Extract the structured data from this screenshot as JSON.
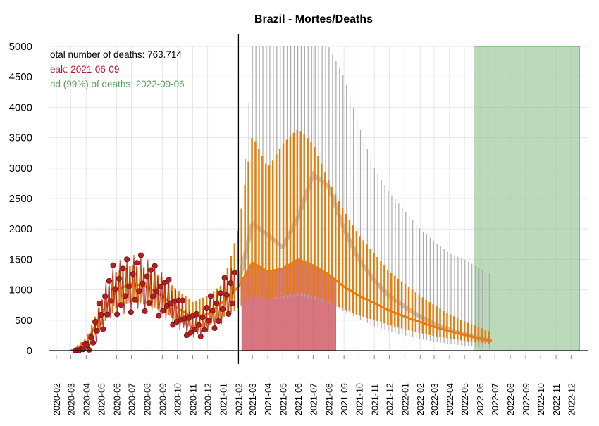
{
  "chart_data": {
    "type": "line",
    "title": "Brazil - Mortes/Deaths",
    "xlabel": "",
    "ylabel": "",
    "ylim": [
      0,
      5000
    ],
    "y_ticks": [
      0,
      500,
      1000,
      1500,
      2000,
      2500,
      3000,
      3500,
      4000,
      4500,
      5000
    ],
    "x_ticks": [
      "2020-02",
      "2020-03",
      "2020-04",
      "2020-05",
      "2020-06",
      "2020-07",
      "2020-08",
      "2020-09",
      "2020-10",
      "2020-11",
      "2020-12",
      "2021-01",
      "2021-02",
      "2021-03",
      "2021-04",
      "2021-05",
      "2021-06",
      "2021-07",
      "2021-08",
      "2021-09",
      "2021-10",
      "2021-11",
      "2021-12",
      "2022-01",
      "2022-02",
      "2022-03",
      "2022-04",
      "2022-05",
      "2022-06",
      "2022-07",
      "2022-08",
      "2022-09",
      "2022-10",
      "2022-11",
      "2022-12"
    ],
    "grid": true,
    "annotations": [
      {
        "text": "otal number of deaths: 763.714",
        "color": "#000000"
      },
      {
        "text": "eak: 2021-06-09",
        "color": "#b2182b"
      },
      {
        "text": "nd (99%) of deaths: 2022-09-06",
        "color": "#5a9e5a"
      }
    ],
    "forecast_start": "2021-02-01",
    "peak_region": {
      "start": "2021-02-08",
      "end": "2021-08-15",
      "color": "#c83c48"
    },
    "end_region": {
      "start": "2022-05-20",
      "end": "2022-12-18",
      "color": "#8fbf8f"
    },
    "colors": {
      "observed": "#a01010",
      "fit": "#e87c0a",
      "uncertainty": "#aaaaaa"
    },
    "series": [
      {
        "role": "observed",
        "x": [
          "2020-03-10",
          "2020-03-25",
          "2020-04-10",
          "2020-04-25",
          "2020-05-10",
          "2020-05-25",
          "2020-06-10",
          "2020-06-25",
          "2020-07-10",
          "2020-07-25",
          "2020-08-10",
          "2020-08-25",
          "2020-09-10",
          "2020-09-25",
          "2020-10-10",
          "2020-10-25",
          "2020-11-10",
          "2020-11-25",
          "2020-12-10",
          "2020-12-25",
          "2021-01-10",
          "2021-01-25"
        ],
        "y": [
          0,
          20,
          150,
          450,
          800,
          1000,
          1050,
          1050,
          1150,
          1100,
          1050,
          950,
          850,
          720,
          580,
          450,
          400,
          500,
          650,
          700,
          950,
          1050
        ],
        "band": [
          0,
          20,
          150,
          300,
          400,
          450,
          500,
          500,
          500,
          500,
          450,
          420,
          400,
          350,
          300,
          250,
          220,
          260,
          320,
          350,
          400,
          400
        ]
      },
      {
        "role": "fit",
        "x": [
          "2020-03-01",
          "2020-04-01",
          "2020-05-01",
          "2020-06-01",
          "2020-07-01",
          "2020-08-01",
          "2020-09-01",
          "2020-10-01",
          "2020-11-01",
          "2020-12-01",
          "2021-01-01",
          "2021-02-01",
          "2021-03-01",
          "2021-04-01",
          "2021-05-01",
          "2021-06-01",
          "2021-07-01",
          "2021-08-01",
          "2021-09-01",
          "2021-10-01",
          "2021-11-01",
          "2021-12-01",
          "2022-01-01",
          "2022-02-01",
          "2022-03-01",
          "2022-04-01",
          "2022-05-01",
          "2022-06-01",
          "2022-06-25"
        ],
        "y": [
          0,
          120,
          600,
          1000,
          1100,
          1050,
          900,
          700,
          550,
          600,
          800,
          1050,
          1450,
          1300,
          1350,
          1500,
          1400,
          1250,
          1050,
          900,
          780,
          660,
          560,
          470,
          390,
          320,
          260,
          200,
          160
        ],
        "high": [
          0,
          200,
          800,
          1300,
          1400,
          1350,
          1200,
          1000,
          800,
          900,
          1100,
          2000,
          3550,
          3000,
          3400,
          3650,
          3400,
          2800,
          2300,
          1900,
          1600,
          1300,
          1100,
          900,
          750,
          600,
          480,
          380,
          300
        ],
        "low": [
          0,
          50,
          400,
          700,
          800,
          750,
          650,
          480,
          380,
          400,
          550,
          700,
          900,
          850,
          900,
          950,
          900,
          800,
          680,
          580,
          500,
          420,
          350,
          290,
          240,
          200,
          160,
          130,
          110
        ]
      },
      {
        "role": "uncertainty",
        "x": [
          "2021-02-01",
          "2021-03-01",
          "2021-04-01",
          "2021-05-01",
          "2021-06-01",
          "2021-07-01",
          "2021-08-01",
          "2021-09-01",
          "2021-10-01",
          "2021-11-01",
          "2021-12-01",
          "2022-01-01",
          "2022-02-01",
          "2022-03-01",
          "2022-04-01",
          "2022-05-01",
          "2022-06-01",
          "2022-06-25"
        ],
        "mid": [
          1100,
          2100,
          1900,
          1700,
          2200,
          2900,
          2700,
          2000,
          1500,
          1150,
          900,
          720,
          560,
          440,
          340,
          270,
          200,
          170
        ],
        "high": [
          1300,
          5000,
          5000,
          5000,
          5000,
          5000,
          5000,
          4500,
          3700,
          3000,
          2600,
          2300,
          2000,
          1800,
          1600,
          1500,
          1350,
          1250
        ],
        "low": [
          800,
          900,
          850,
          850,
          900,
          850,
          780,
          650,
          520,
          400,
          320,
          250,
          190,
          150,
          110,
          80,
          50,
          30
        ]
      }
    ]
  }
}
